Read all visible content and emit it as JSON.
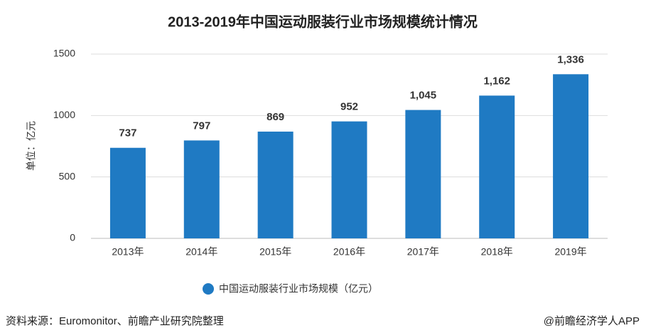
{
  "chart_data": {
    "type": "bar",
    "title": "2013-2019年中国运动服装行业市场规模统计情况",
    "y_label": "单位：亿元",
    "categories": [
      "2013年",
      "2014年",
      "2015年",
      "2016年",
      "2017年",
      "2018年",
      "2019年"
    ],
    "series": [
      {
        "name": "中国运动服装行业市场规模（亿元）",
        "color": "#1f7ac3",
        "values": [
          737,
          797,
          869,
          952,
          1045,
          1162,
          1336
        ],
        "value_labels": [
          "737",
          "797",
          "869",
          "952",
          "1,045",
          "1,162",
          "1,336"
        ]
      }
    ],
    "ylim": [
      0,
      1500
    ],
    "yticks": [
      0,
      500,
      1000,
      1500
    ],
    "grid": true,
    "legend": "bottom"
  },
  "footer": {
    "source": "资料来源：Euromonitor、前瞻产业研究院整理",
    "credit": "@前瞻经济学人APP"
  }
}
